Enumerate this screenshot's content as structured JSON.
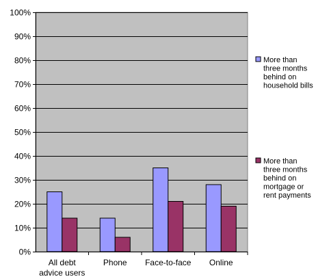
{
  "chart_data": {
    "type": "bar",
    "categories": [
      [
        "All debt",
        "advice users"
      ],
      [
        "Phone"
      ],
      [
        "Face-to-face"
      ],
      [
        "Online"
      ]
    ],
    "series": [
      {
        "name": [
          "More than",
          "three months",
          "behind on",
          "household bills"
        ],
        "color": "#9999ff",
        "values": [
          25,
          14,
          35,
          28
        ]
      },
      {
        "name": [
          "More than",
          "three months",
          "behind on",
          "mortgage or",
          "rent payments"
        ],
        "color": "#993366",
        "values": [
          14,
          6,
          21,
          19
        ]
      }
    ],
    "ylim": [
      0,
      100
    ],
    "yticks": [
      "0%",
      "10%",
      "20%",
      "30%",
      "40%",
      "50%",
      "60%",
      "70%",
      "80%",
      "90%",
      "100%"
    ],
    "grid": true,
    "plot_background": "#c0c0c0",
    "legend_position": "right"
  }
}
